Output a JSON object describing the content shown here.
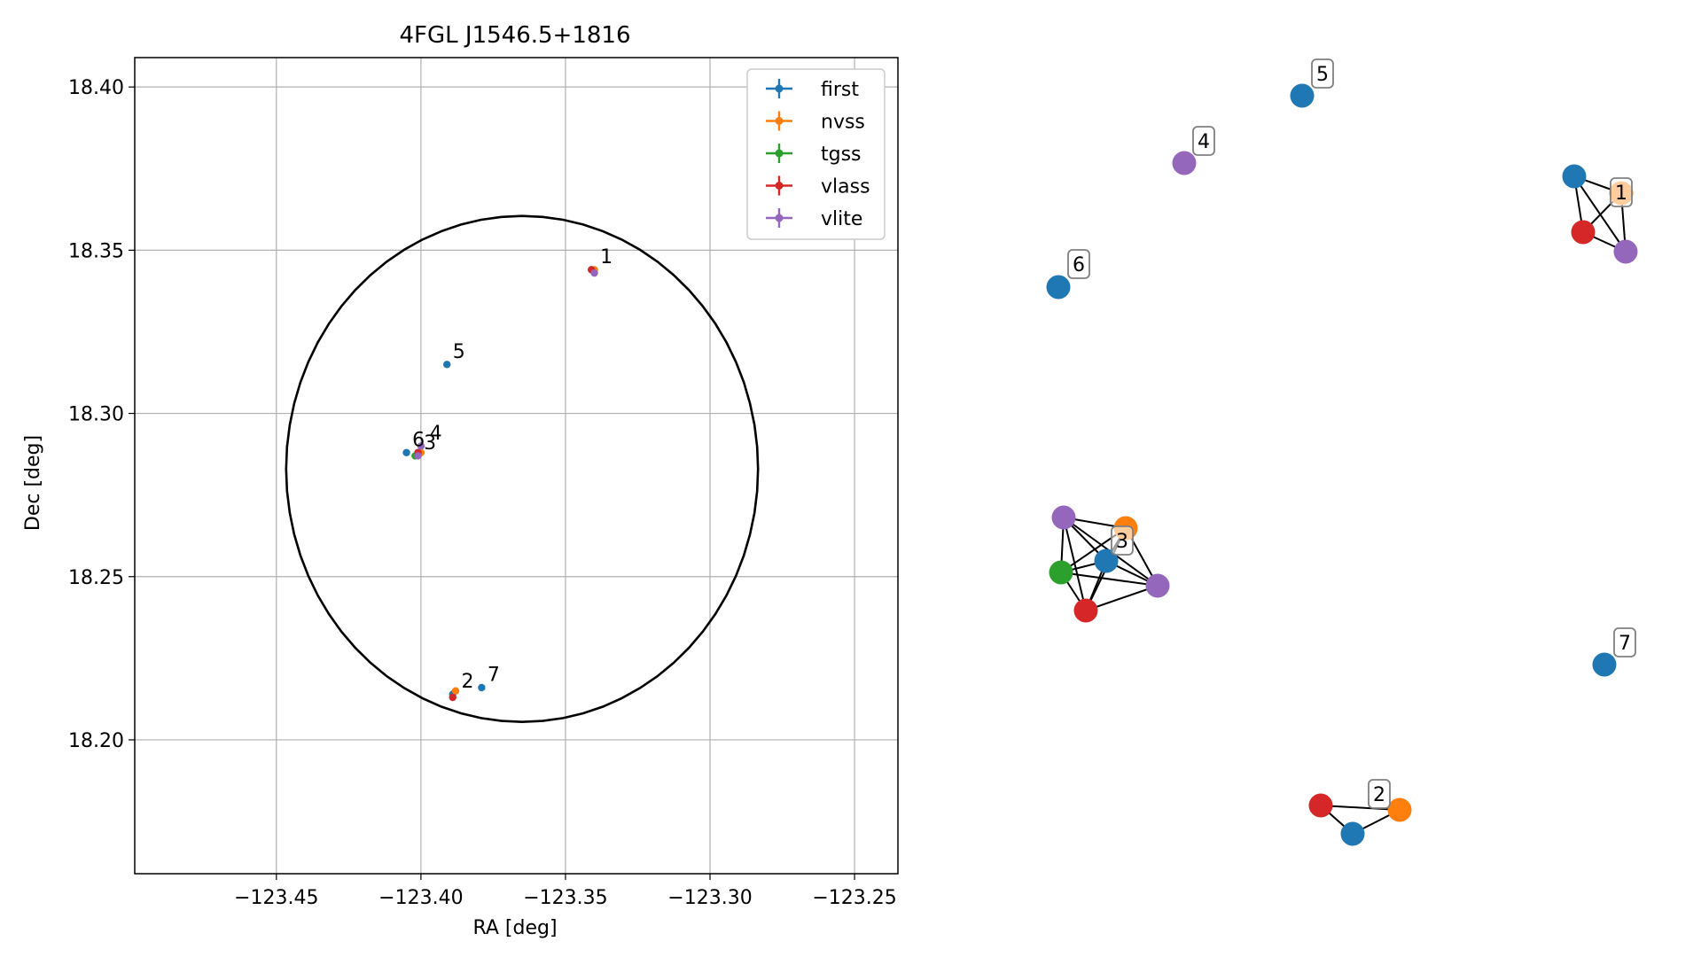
{
  "chart_data": [
    {
      "type": "scatter",
      "title": "4FGL J1546.5+1816",
      "xlabel": "RA [deg]",
      "ylabel": "Dec [deg]",
      "xlim": [
        -123.499,
        -123.235
      ],
      "ylim": [
        18.159,
        18.409
      ],
      "xticks": [
        -123.45,
        -123.4,
        -123.35,
        -123.3,
        -123.25
      ],
      "xtick_labels": [
        "−123.45",
        "−123.40",
        "−123.35",
        "−123.30",
        "−123.25"
      ],
      "yticks": [
        18.2,
        18.25,
        18.3,
        18.35,
        18.4
      ],
      "ytick_labels": [
        "18.20",
        "18.25",
        "18.30",
        "18.35",
        "18.40"
      ],
      "grid": true,
      "legend_position": "top-right",
      "series": [
        {
          "name": "first",
          "color": "#1f77b4",
          "points": [
            [
              -123.341,
              18.344
            ],
            [
              -123.391,
              18.315
            ],
            [
              -123.405,
              18.288
            ],
            [
              -123.401,
              18.288
            ],
            [
              -123.389,
              18.214
            ],
            [
              -123.379,
              18.216
            ]
          ]
        },
        {
          "name": "nvss",
          "color": "#ff7f0e",
          "points": [
            [
              -123.34,
              18.344
            ],
            [
              -123.4,
              18.288
            ],
            [
              -123.388,
              18.215
            ]
          ]
        },
        {
          "name": "tgss",
          "color": "#2ca02c",
          "points": [
            [
              -123.402,
              18.287
            ]
          ]
        },
        {
          "name": "vlass",
          "color": "#d62728",
          "points": [
            [
              -123.341,
              18.344
            ],
            [
              -123.401,
              18.288
            ],
            [
              -123.389,
              18.213
            ]
          ]
        },
        {
          "name": "vlite",
          "color": "#9467bd",
          "points": [
            [
              -123.34,
              18.343
            ],
            [
              -123.4,
              18.29
            ],
            [
              -123.401,
              18.287
            ]
          ]
        }
      ],
      "circle": {
        "center": [
          -123.365,
          18.283
        ],
        "radius_dec": 0.0775
      },
      "annotations": [
        {
          "text": "1",
          "x": -123.338,
          "y": 18.346
        },
        {
          "text": "5",
          "x": -123.389,
          "y": 18.317
        },
        {
          "text": "6",
          "x": -123.403,
          "y": 18.29
        },
        {
          "text": "4",
          "x": -123.397,
          "y": 18.292
        },
        {
          "text": "3",
          "x": -123.399,
          "y": 18.289
        },
        {
          "text": "2",
          "x": -123.386,
          "y": 18.216
        },
        {
          "text": "7",
          "x": -123.377,
          "y": 18.218
        }
      ]
    },
    {
      "type": "network",
      "node_colors": {
        "first": "#1f77b4",
        "nvss": "#ff7f0e",
        "tgss": "#2ca02c",
        "vlass": "#d62728",
        "vlite": "#9467bd"
      },
      "groups": [
        {
          "label": "1",
          "nodes": [
            "first",
            "nvss",
            "vlass",
            "vlite"
          ]
        },
        {
          "label": "2",
          "nodes": [
            "vlass",
            "first",
            "nvss"
          ]
        },
        {
          "label": "3",
          "nodes": [
            "vlite",
            "nvss",
            "first",
            "tgss",
            "vlass",
            "vlite"
          ]
        },
        {
          "label": "4",
          "nodes": [
            "vlite"
          ]
        },
        {
          "label": "5",
          "nodes": [
            "first"
          ]
        },
        {
          "label": "6",
          "nodes": [
            "first"
          ]
        },
        {
          "label": "7",
          "nodes": [
            "first"
          ]
        }
      ]
    }
  ]
}
